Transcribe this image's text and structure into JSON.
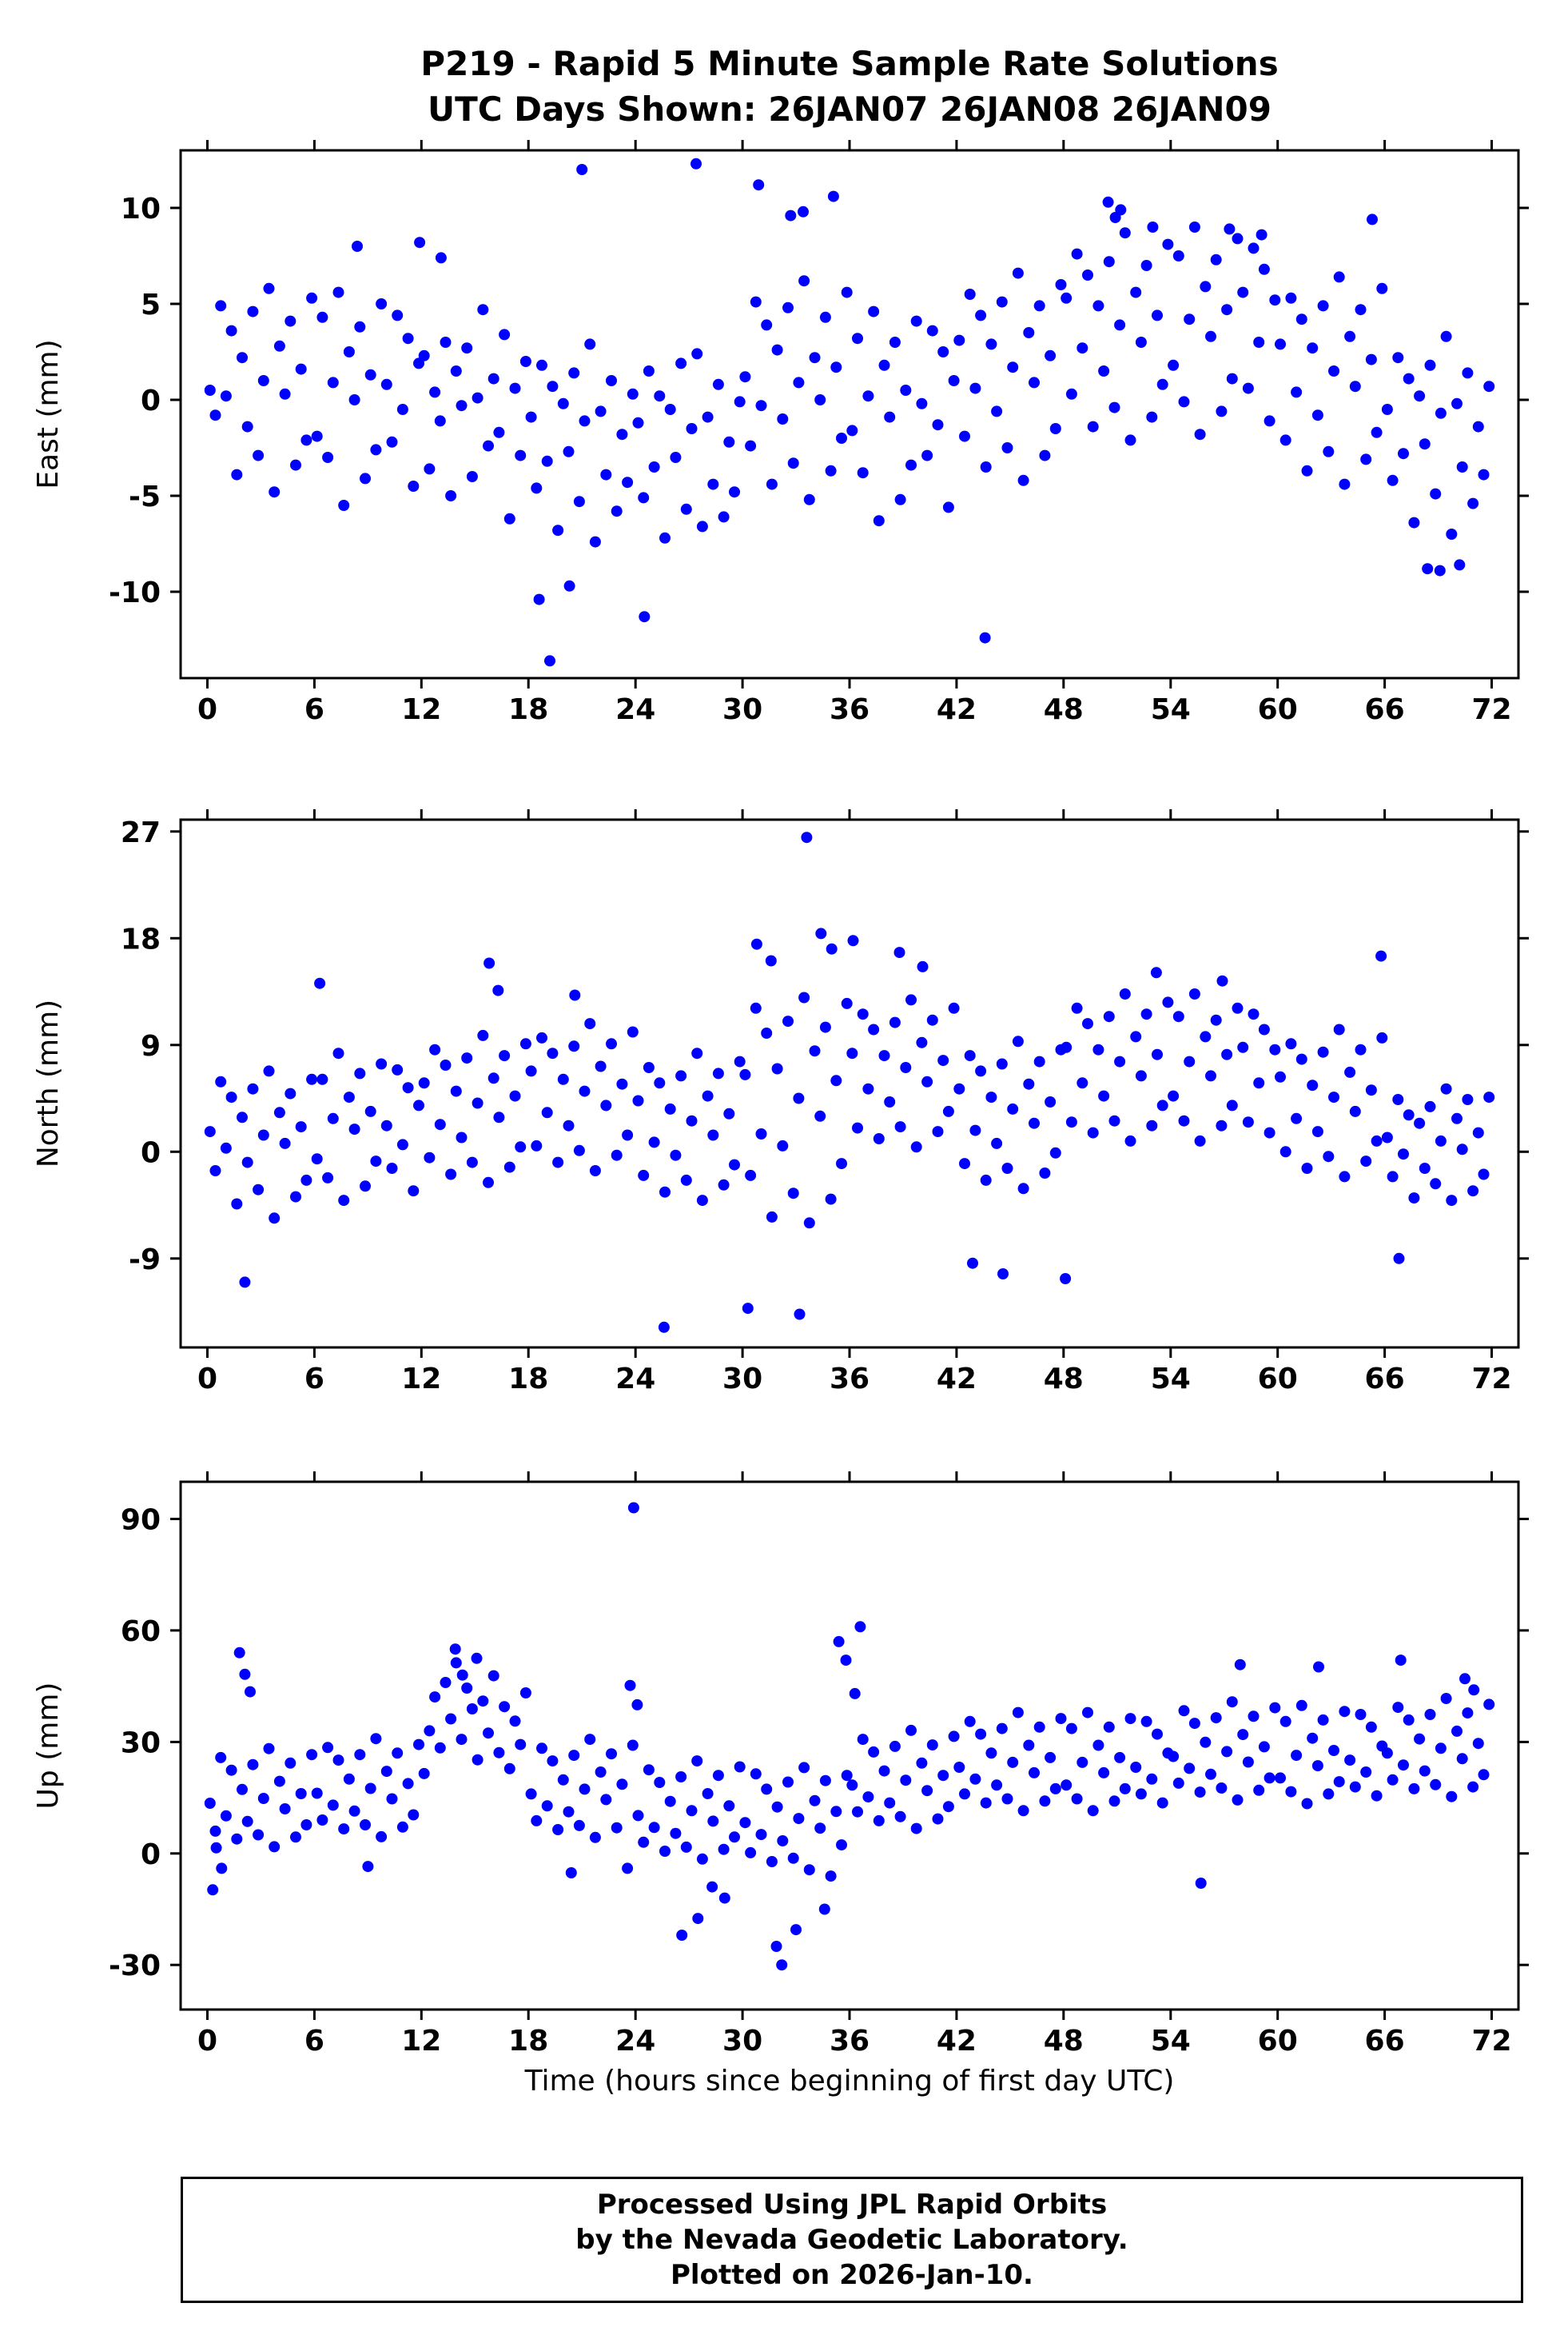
{
  "title": {
    "line1": "P219 - Rapid 5 Minute Sample Rate Solutions",
    "line2": "UTC Days Shown:  26JAN07 26JAN08 26JAN09"
  },
  "footer": {
    "line1": "Processed Using JPL Rapid Orbits",
    "line2": "by the Nevada Geodetic Laboratory.",
    "line3": "Plotted on 2026-Jan-10."
  },
  "colors": {
    "point": "#0000ff",
    "axis": "#000000",
    "background": "#ffffff"
  },
  "chart_data": {
    "type": "scatter",
    "title": "P219 - Rapid 5 Minute Sample Rate Solutions",
    "subtitle": "UTC Days Shown:  26JAN07 26JAN08 26JAN09",
    "xlabel": "Time (hours since beginning of first day UTC)",
    "station": "P219",
    "utc_days": [
      "26JAN07",
      "26JAN08",
      "26JAN09"
    ],
    "sample_rate": "5 minute",
    "xlim": [
      -1.5,
      73.5
    ],
    "xticks": [
      0,
      6,
      12,
      18,
      24,
      30,
      36,
      42,
      48,
      54,
      60,
      66,
      72
    ],
    "grid": false,
    "legend": "none",
    "marker": {
      "color": "#0000ff",
      "radius": 7
    },
    "subplots": [
      {
        "name": "east",
        "ylabel": "East (mm)",
        "ylim": [
          -14.5,
          13
        ],
        "yticks": [
          -10,
          -5,
          0,
          5,
          10
        ],
        "x_start": 0.15,
        "x_step": 0.3,
        "y": [
          0.5,
          -0.8,
          4.9,
          0.2,
          3.6,
          -3.9,
          2.2,
          -1.4,
          4.6,
          -2.9,
          1.0,
          5.8,
          -4.8,
          2.8,
          0.3,
          4.1,
          -3.4,
          1.6,
          -2.1,
          5.3,
          -1.9,
          4.3,
          -3.0,
          0.9,
          5.6,
          -5.5,
          2.5,
          0.0,
          3.8,
          -4.1,
          1.3,
          -2.6,
          5.0,
          0.8,
          -2.2,
          4.4,
          -0.5,
          3.2,
          -4.5,
          1.9,
          2.3,
          -3.6,
          0.4,
          -1.1,
          3.0,
          -5.0,
          1.5,
          -0.3,
          2.7,
          -4.0,
          0.1,
          4.7,
          -2.4,
          1.1,
          -1.7,
          3.4,
          -6.2,
          0.6,
          -2.9,
          2.0,
          -0.9,
          -4.6,
          1.8,
          -3.2,
          0.7,
          -6.8,
          -0.2,
          -2.7,
          1.4,
          -5.3,
          -1.1,
          2.9,
          -7.4,
          -0.6,
          -3.9,
          1.0,
          -5.8,
          -1.8,
          -4.3,
          0.3,
          -1.2,
          -5.1,
          1.5,
          -3.5,
          0.2,
          -7.2,
          -0.5,
          -3.0,
          1.9,
          -5.7,
          -1.5,
          2.4,
          -6.6,
          -0.9,
          -4.4,
          0.8,
          -6.1,
          -2.2,
          -4.8,
          -0.1,
          1.2,
          -2.4,
          5.1,
          -0.3,
          3.9,
          -4.4,
          2.6,
          -1.0,
          4.8,
          -3.3,
          0.9,
          6.2,
          -5.2,
          2.2,
          0.0,
          4.3,
          -3.7,
          1.7,
          -2.0,
          5.6,
          -1.6,
          3.2,
          -3.8,
          0.2,
          4.6,
          -6.3,
          1.8,
          -0.9,
          3.0,
          -5.2,
          0.5,
          -3.4,
          4.1,
          -0.2,
          -2.9,
          3.6,
          -1.3,
          2.5,
          -5.6,
          1.0,
          3.1,
          -1.9,
          5.5,
          0.6,
          4.4,
          -3.5,
          2.9,
          -0.6,
          5.1,
          -2.5,
          1.7,
          6.6,
          -4.2,
          3.5,
          0.9,
          4.9,
          -2.9,
          2.3,
          -1.5,
          6.0,
          5.3,
          0.3,
          7.6,
          2.7,
          6.5,
          -1.4,
          4.9,
          1.5,
          7.2,
          -0.4,
          3.9,
          8.7,
          -2.1,
          5.6,
          3.0,
          7.0,
          -0.9,
          4.4,
          0.8,
          8.1,
          1.8,
          7.5,
          -0.1,
          4.2,
          9.0,
          -1.8,
          5.9,
          3.3,
          7.3,
          -0.6,
          4.7,
          1.1,
          8.4,
          5.6,
          0.6,
          7.9,
          3.0,
          6.8,
          -1.1,
          5.2,
          2.9,
          -2.1,
          5.3,
          0.4,
          4.2,
          -3.7,
          2.7,
          -0.8,
          4.9,
          -2.7,
          1.5,
          6.4,
          -4.4,
          3.3,
          0.7,
          4.7,
          -3.1,
          2.1,
          -1.7,
          5.8,
          -0.5,
          -4.2,
          2.2,
          -2.8,
          1.1,
          -6.4,
          0.2,
          -2.3,
          1.8,
          -4.9,
          -0.7,
          3.3,
          -7.0,
          -0.2,
          -3.5,
          1.4,
          -5.4,
          -1.4,
          -3.9,
          0.7
        ],
        "outliers": [
          [
            18.6,
            -10.4
          ],
          [
            19.2,
            -13.6
          ],
          [
            21.0,
            12.0
          ],
          [
            24.5,
            -11.3
          ],
          [
            27.4,
            12.3
          ],
          [
            20.3,
            -9.7
          ],
          [
            30.9,
            11.2
          ],
          [
            32.7,
            9.6
          ],
          [
            33.4,
            9.8
          ],
          [
            35.1,
            10.6
          ],
          [
            43.6,
            -12.4
          ],
          [
            50.5,
            10.3
          ],
          [
            51.2,
            9.9
          ],
          [
            50.9,
            9.5
          ],
          [
            53.0,
            9.0
          ],
          [
            57.3,
            8.9
          ],
          [
            59.1,
            8.6
          ],
          [
            68.4,
            -8.8
          ],
          [
            69.1,
            -8.9
          ],
          [
            70.2,
            -8.6
          ],
          [
            65.3,
            9.4
          ],
          [
            8.4,
            8.0
          ],
          [
            11.9,
            8.2
          ],
          [
            13.1,
            7.4
          ]
        ]
      },
      {
        "name": "north",
        "ylabel": "North (mm)",
        "ylim": [
          -16.5,
          28
        ],
        "yticks": [
          -9,
          0,
          9,
          18,
          27
        ],
        "x_start": 0.15,
        "x_step": 0.3,
        "y": [
          1.7,
          -1.6,
          5.9,
          0.3,
          4.6,
          -4.4,
          2.9,
          -0.9,
          5.3,
          -3.2,
          1.4,
          6.8,
          -5.6,
          3.3,
          0.7,
          4.9,
          -3.8,
          2.1,
          -2.4,
          6.1,
          -0.6,
          6.1,
          -2.2,
          2.8,
          8.3,
          -4.1,
          4.6,
          1.9,
          6.6,
          -2.9,
          3.4,
          -0.8,
          7.4,
          2.2,
          -1.4,
          6.9,
          0.6,
          5.4,
          -3.3,
          3.9,
          5.8,
          -0.5,
          8.6,
          2.3,
          7.3,
          -1.9,
          5.1,
          1.2,
          7.9,
          -0.9,
          4.1,
          9.8,
          -2.6,
          6.2,
          2.9,
          8.1,
          -1.3,
          4.7,
          0.4,
          9.1,
          6.8,
          0.5,
          9.6,
          3.3,
          8.3,
          -0.9,
          6.1,
          2.2,
          8.9,
          0.1,
          5.1,
          10.8,
          -1.6,
          7.2,
          3.9,
          9.1,
          -0.3,
          5.7,
          1.4,
          10.1,
          4.3,
          -2.0,
          7.1,
          0.8,
          5.8,
          -3.4,
          3.6,
          -0.3,
          6.4,
          -2.4,
          2.6,
          8.3,
          -4.1,
          4.7,
          1.4,
          6.6,
          -2.8,
          3.2,
          -1.1,
          7.6,
          6.5,
          -2.0,
          12.1,
          1.5,
          10.0,
          -5.5,
          7.0,
          0.5,
          11.0,
          -3.5,
          4.5,
          13.0,
          -6.0,
          8.5,
          3.0,
          10.5,
          -4.0,
          6.0,
          -1.0,
          12.5,
          8.3,
          2.0,
          11.6,
          5.3,
          10.3,
          1.1,
          8.1,
          4.2,
          10.9,
          2.1,
          7.1,
          12.8,
          0.4,
          9.2,
          5.9,
          11.1,
          1.7,
          7.7,
          3.4,
          12.1,
          5.3,
          -1.0,
          8.1,
          1.8,
          6.8,
          -2.4,
          4.6,
          0.7,
          7.4,
          -1.4,
          3.6,
          9.3,
          -3.1,
          5.7,
          2.4,
          7.6,
          -1.8,
          4.2,
          -0.1,
          8.6,
          8.8,
          2.5,
          12.1,
          5.8,
          10.8,
          1.6,
          8.6,
          4.7,
          11.4,
          2.6,
          7.6,
          13.3,
          0.9,
          9.7,
          6.4,
          11.6,
          2.2,
          8.2,
          3.9,
          12.6,
          4.7,
          11.4,
          2.6,
          7.6,
          13.3,
          0.9,
          9.7,
          6.4,
          11.1,
          2.2,
          8.2,
          3.9,
          12.1,
          8.8,
          2.5,
          11.6,
          5.8,
          10.3,
          1.6,
          8.6,
          6.3,
          0.0,
          9.1,
          2.8,
          7.8,
          -1.4,
          5.6,
          1.7,
          8.4,
          -0.4,
          4.6,
          10.3,
          -2.1,
          6.7,
          3.4,
          8.6,
          -0.8,
          5.2,
          0.9,
          9.6,
          1.2,
          -2.1,
          4.4,
          -0.2,
          3.1,
          -3.9,
          2.4,
          -1.4,
          3.8,
          -2.7,
          0.9,
          5.3,
          -4.1,
          2.8,
          0.2,
          4.4,
          -3.3,
          1.6,
          -1.9,
          4.6
        ],
        "outliers": [
          [
            33.6,
            26.5
          ],
          [
            25.6,
            -14.8
          ],
          [
            30.3,
            -13.2
          ],
          [
            33.2,
            -13.7
          ],
          [
            2.1,
            -11.0
          ],
          [
            15.8,
            15.9
          ],
          [
            16.3,
            13.6
          ],
          [
            20.6,
            13.2
          ],
          [
            30.8,
            17.5
          ],
          [
            31.6,
            16.1
          ],
          [
            34.4,
            18.4
          ],
          [
            35.0,
            17.1
          ],
          [
            36.2,
            17.8
          ],
          [
            38.8,
            16.8
          ],
          [
            40.1,
            15.6
          ],
          [
            44.6,
            -10.3
          ],
          [
            48.1,
            -10.7
          ],
          [
            53.2,
            15.1
          ],
          [
            56.9,
            14.4
          ],
          [
            65.8,
            16.5
          ],
          [
            6.3,
            14.2
          ],
          [
            66.8,
            -9.0
          ],
          [
            42.9,
            -9.4
          ]
        ]
      },
      {
        "name": "up",
        "ylabel": "Up (mm)",
        "ylim": [
          -42,
          100
        ],
        "yticks": [
          -30,
          0,
          30,
          60,
          90
        ],
        "x_start": 0.15,
        "x_step": 0.3,
        "y": [
          13.5,
          6.0,
          25.8,
          10.1,
          22.4,
          3.9,
          17.2,
          8.6,
          23.9,
          5.0,
          14.8,
          28.2,
          1.8,
          19.4,
          12.0,
          24.3,
          4.4,
          16.1,
          7.7,
          26.6,
          16.2,
          9.0,
          28.5,
          13.0,
          25.1,
          6.6,
          20.0,
          11.4,
          26.6,
          7.7,
          17.5,
          30.9,
          4.5,
          22.1,
          14.7,
          27.0,
          7.1,
          18.8,
          10.4,
          29.3,
          21.5,
          33.0,
          42.1,
          28.4,
          46.0,
          36.2,
          51.3,
          30.7,
          44.5,
          38.9,
          25.2,
          41.0,
          32.4,
          47.8,
          27.1,
          39.5,
          22.8,
          35.6,
          29.3,
          43.2,
          16.0,
          8.8,
          28.3,
          12.8,
          24.9,
          6.4,
          19.8,
          11.2,
          26.4,
          7.5,
          17.3,
          30.7,
          4.3,
          21.9,
          14.5,
          26.8,
          6.9,
          18.6,
          -4.0,
          29.1,
          10.2,
          3.0,
          22.5,
          7.0,
          19.1,
          0.6,
          14.0,
          5.4,
          20.6,
          1.7,
          11.5,
          24.9,
          -1.5,
          16.1,
          8.7,
          21.0,
          1.1,
          12.8,
          4.4,
          23.3,
          8.3,
          0.2,
          21.4,
          5.1,
          17.3,
          -2.2,
          12.5,
          3.4,
          19.2,
          -1.3,
          9.4,
          23.1,
          -4.4,
          14.2,
          6.8,
          19.6,
          -6.1,
          11.3,
          2.3,
          21.0,
          18.4,
          11.2,
          30.7,
          15.2,
          27.3,
          8.8,
          22.2,
          13.6,
          28.8,
          9.9,
          19.7,
          33.1,
          6.7,
          24.3,
          16.9,
          29.2,
          9.3,
          21.0,
          12.6,
          31.5,
          23.2,
          16.0,
          35.5,
          20.0,
          32.1,
          13.6,
          27.0,
          18.4,
          33.6,
          14.7,
          24.5,
          37.9,
          11.5,
          29.1,
          21.7,
          34.0,
          14.1,
          25.8,
          17.4,
          36.3,
          18.4,
          33.6,
          14.7,
          24.5,
          37.9,
          11.5,
          29.1,
          21.7,
          34.0,
          14.1,
          25.8,
          17.4,
          36.3,
          23.2,
          16.0,
          35.5,
          20.0,
          32.1,
          13.6,
          27.0,
          26.1,
          18.9,
          38.4,
          22.9,
          35.0,
          16.5,
          29.9,
          21.3,
          36.5,
          17.6,
          27.4,
          40.8,
          14.4,
          32.0,
          24.6,
          36.9,
          17.0,
          28.7,
          20.3,
          39.2,
          20.3,
          35.5,
          16.6,
          26.4,
          39.8,
          13.4,
          31.0,
          23.6,
          35.9,
          16.0,
          27.7,
          19.3,
          38.2,
          25.1,
          17.9,
          37.4,
          21.9,
          34.0,
          15.5,
          28.9,
          27.0,
          19.8,
          39.3,
          23.8,
          35.9,
          17.4,
          30.8,
          22.2,
          37.4,
          18.5,
          28.3,
          41.7,
          15.3,
          32.9,
          25.5,
          37.8,
          17.9,
          29.6,
          21.2,
          40.1
        ],
        "outliers": [
          [
            0.3,
            -9.8
          ],
          [
            0.5,
            1.5
          ],
          [
            0.8,
            -4.0
          ],
          [
            1.8,
            54.0
          ],
          [
            2.1,
            48.2
          ],
          [
            2.4,
            43.5
          ],
          [
            13.9,
            55.0
          ],
          [
            14.3,
            48.0
          ],
          [
            15.1,
            52.5
          ],
          [
            23.9,
            93.0
          ],
          [
            23.7,
            45.2
          ],
          [
            24.1,
            40.0
          ],
          [
            20.4,
            -5.2
          ],
          [
            26.6,
            -22.0
          ],
          [
            27.5,
            -17.5
          ],
          [
            29.0,
            -12.0
          ],
          [
            31.9,
            -25.0
          ],
          [
            32.2,
            -30.0
          ],
          [
            34.6,
            -15.0
          ],
          [
            33.0,
            -20.5
          ],
          [
            35.4,
            57.0
          ],
          [
            35.8,
            52.0
          ],
          [
            36.6,
            61.0
          ],
          [
            36.3,
            43.0
          ],
          [
            55.7,
            -8.0
          ],
          [
            57.9,
            50.8
          ],
          [
            62.3,
            50.2
          ],
          [
            66.9,
            52.0
          ],
          [
            70.5,
            47.0
          ],
          [
            71.0,
            44.0
          ],
          [
            9.0,
            -3.5
          ],
          [
            28.3,
            -9.0
          ]
        ]
      }
    ]
  }
}
